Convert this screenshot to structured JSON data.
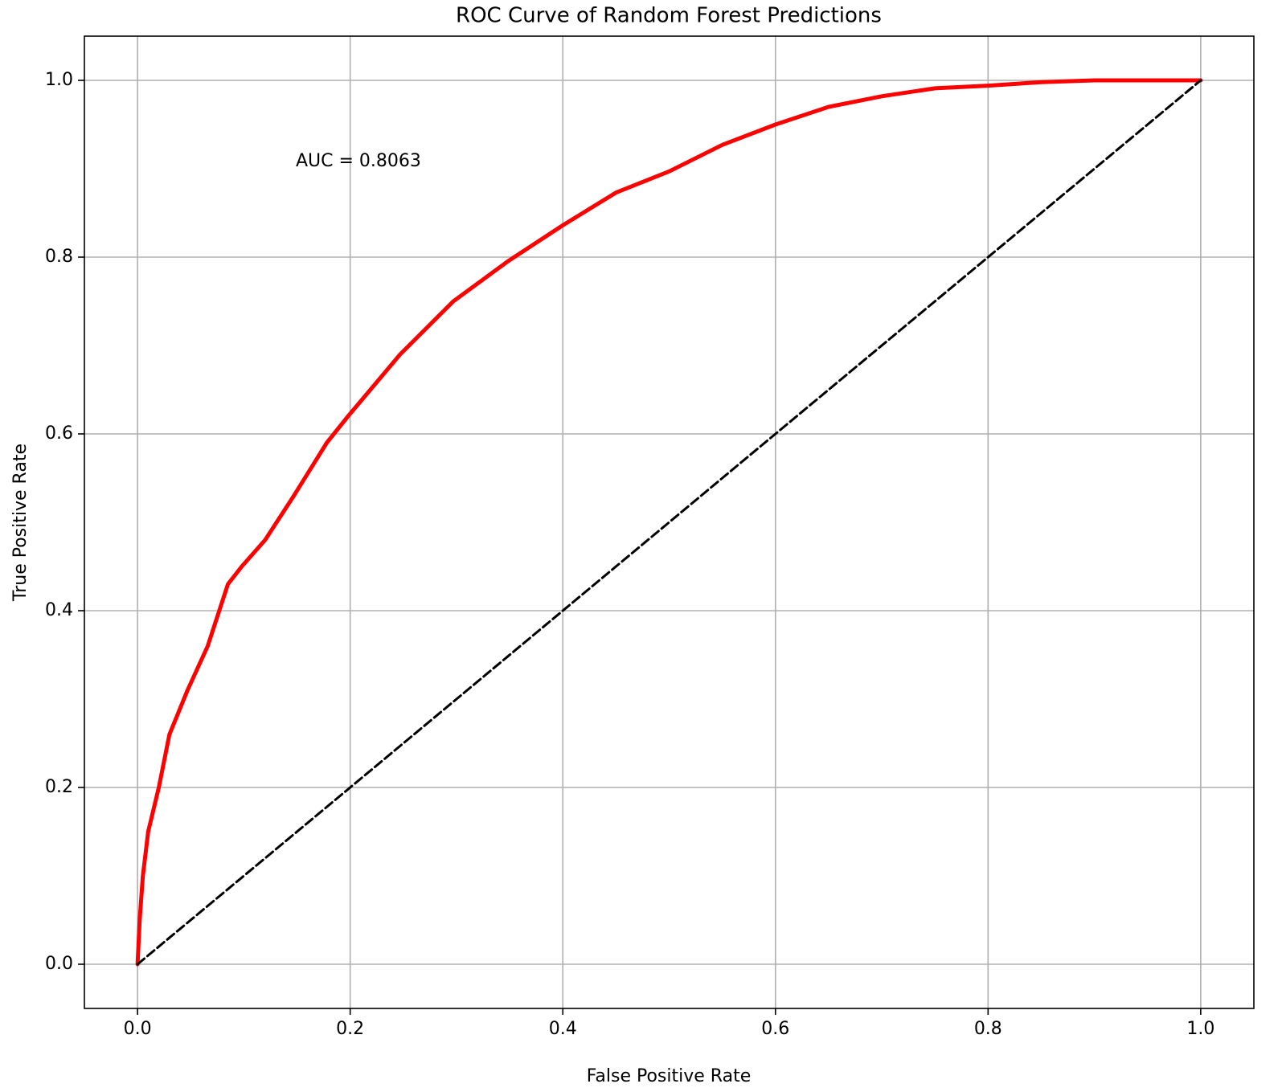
{
  "chart_data": {
    "type": "line",
    "title": "ROC Curve of Random Forest Predictions",
    "x_label": "False Positive Rate",
    "y_label": "True Positive Rate",
    "annotation": "AUC = 0.8063",
    "xlim": [
      -0.05,
      1.05
    ],
    "ylim": [
      -0.05,
      1.05
    ],
    "xticks": [
      {
        "value": 0,
        "label": "0.0"
      },
      0.2,
      0.4,
      0.6,
      0.8,
      {
        "value": 1,
        "label": "1.0"
      }
    ],
    "yticks": [
      {
        "value": 0,
        "label": "0.0"
      },
      0.2,
      0.4,
      0.6,
      0.8,
      {
        "value": 1,
        "label": "1.0"
      }
    ],
    "grid": true,
    "series": [
      {
        "color": "#ff0000",
        "linestyle": "solid",
        "linewidth": 5,
        "x": [
          0,
          0.002,
          0.005,
          0.01,
          0.02,
          0.03,
          0.047,
          0.066,
          0.085,
          0.098,
          0.12,
          0.147,
          0.178,
          0.198,
          0.247,
          0.297,
          0.348,
          0.4,
          0.45,
          0.5,
          0.55,
          0.6,
          0.65,
          0.7,
          0.75,
          0.8,
          0.85,
          0.9,
          1.0
        ],
        "values": [
          0,
          0.05,
          0.1,
          0.15,
          0.2,
          0.26,
          0.31,
          0.36,
          0.43,
          0.45,
          0.48,
          0.53,
          0.59,
          0.62,
          0.69,
          0.75,
          0.795,
          0.836,
          0.873,
          0.897,
          0.927,
          0.95,
          0.97,
          0.982,
          0.991,
          0.994,
          0.998,
          1.0,
          1.0
        ]
      },
      {
        "color": "#000000",
        "linestyle": "dashed",
        "linewidth": 3,
        "x": [
          0,
          1
        ],
        "values": [
          0,
          1
        ]
      }
    ]
  }
}
